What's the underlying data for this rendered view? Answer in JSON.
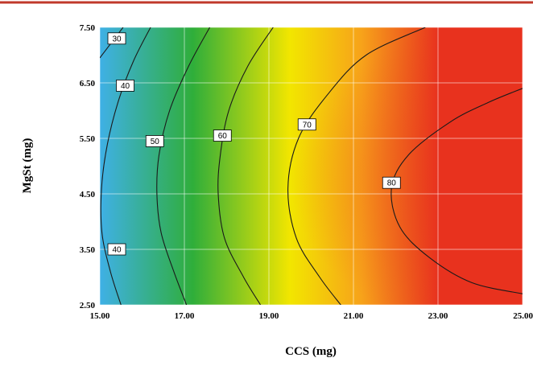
{
  "colors": {
    "top_rule": "#c0392b",
    "gradient_low": "#3fb0e6",
    "gradient_mid_low": "#2fae3a",
    "gradient_mid": "#f2e600",
    "gradient_mid_high": "#f7a21a",
    "gradient_high": "#e8321e",
    "contour_line": "#1a1a1a",
    "grid": "#ffffff"
  },
  "chart_data": {
    "type": "heatmap",
    "subtype": "contour",
    "title": "",
    "xlabel": "CCS (mg)",
    "ylabel": "MgSt (mg)",
    "xlim": [
      15,
      25
    ],
    "ylim": [
      2.5,
      7.5
    ],
    "x_ticks": [
      "15.00",
      "17.00",
      "19.00",
      "21.00",
      "23.00",
      "25.00"
    ],
    "y_ticks": [
      "2.50",
      "3.50",
      "4.50",
      "5.50",
      "6.50",
      "7.50"
    ],
    "x_tick_values": [
      15,
      17,
      19,
      21,
      23,
      25
    ],
    "y_tick_values": [
      2.5,
      3.5,
      4.5,
      5.5,
      6.5,
      7.5
    ],
    "grid": true,
    "color_scale": "blue-green-yellow-orange-red (low to high)",
    "contour_levels": [
      {
        "level": 30,
        "label": "30",
        "label_at": [
          15.4,
          7.3
        ]
      },
      {
        "level": 40,
        "label": "40",
        "label_at": [
          15.6,
          6.45
        ]
      },
      {
        "level": 40,
        "label": "40",
        "label_at": [
          15.4,
          3.5
        ]
      },
      {
        "level": 50,
        "label": "50",
        "label_at": [
          16.3,
          5.45
        ]
      },
      {
        "level": 60,
        "label": "60",
        "label_at": [
          17.9,
          5.55
        ]
      },
      {
        "level": 70,
        "label": "70",
        "label_at": [
          19.9,
          5.75
        ]
      },
      {
        "level": 80,
        "label": "80",
        "label_at": [
          21.9,
          4.7
        ]
      }
    ],
    "contours": [
      {
        "level": 30,
        "points": [
          [
            15.0,
            6.95
          ],
          [
            15.3,
            7.25
          ],
          [
            15.55,
            7.5
          ]
        ]
      },
      {
        "level": 40,
        "points": [
          [
            16.2,
            7.5
          ],
          [
            15.8,
            6.9
          ],
          [
            15.45,
            6.2
          ],
          [
            15.18,
            5.4
          ],
          [
            15.04,
            4.6
          ],
          [
            15.05,
            3.8
          ],
          [
            15.25,
            3.1
          ],
          [
            15.5,
            2.5
          ]
        ]
      },
      {
        "level": 50,
        "points": [
          [
            17.6,
            7.5
          ],
          [
            17.1,
            6.8
          ],
          [
            16.65,
            6.0
          ],
          [
            16.4,
            5.2
          ],
          [
            16.35,
            4.5
          ],
          [
            16.45,
            3.8
          ],
          [
            16.75,
            3.1
          ],
          [
            17.05,
            2.5
          ]
        ]
      },
      {
        "level": 60,
        "points": [
          [
            19.1,
            7.5
          ],
          [
            18.5,
            6.8
          ],
          [
            18.05,
            6.0
          ],
          [
            17.85,
            5.2
          ],
          [
            17.8,
            4.5
          ],
          [
            17.95,
            3.7
          ],
          [
            18.4,
            3.0
          ],
          [
            18.8,
            2.5
          ]
        ]
      },
      {
        "level": 70,
        "points": [
          [
            22.7,
            7.5
          ],
          [
            21.3,
            7.0
          ],
          [
            20.4,
            6.3
          ],
          [
            19.7,
            5.5
          ],
          [
            19.45,
            4.6
          ],
          [
            19.65,
            3.7
          ],
          [
            20.2,
            3.0
          ],
          [
            20.7,
            2.5
          ]
        ]
      },
      {
        "level": 80,
        "points": [
          [
            25.0,
            6.4
          ],
          [
            24.2,
            6.15
          ],
          [
            23.3,
            5.8
          ],
          [
            22.3,
            5.2
          ],
          [
            21.9,
            4.6
          ],
          [
            22.1,
            3.9
          ],
          [
            22.8,
            3.35
          ],
          [
            23.8,
            2.9
          ],
          [
            25.0,
            2.7
          ]
        ]
      }
    ]
  }
}
